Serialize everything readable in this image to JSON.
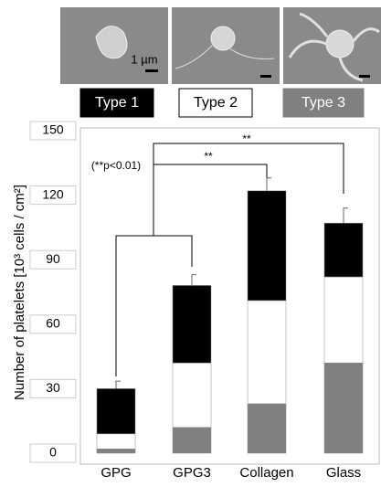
{
  "chart_data": {
    "type": "stacked_bar",
    "y_label": "Number of platelets [10³ cells / cm²]",
    "categories": [
      "GPG",
      "GPG3",
      "Collagen",
      "Glass"
    ],
    "series": [
      {
        "name": "Type 1",
        "color": "#000000",
        "values": [
          21,
          36,
          51,
          25
        ]
      },
      {
        "name": "Type 2",
        "color": "#ffffff",
        "values": [
          7,
          30,
          48,
          40
        ]
      },
      {
        "name": "Type 3",
        "color": "#808080",
        "values": [
          2,
          12,
          23,
          42
        ]
      }
    ],
    "errors": [
      3.5,
      5,
      6,
      7
    ],
    "ylim": [
      0,
      150
    ],
    "yticks": [
      0,
      30,
      60,
      90,
      120,
      150
    ],
    "annotations": [
      "(**p<0.01)",
      "**",
      "**"
    ],
    "scale_bar_label": "1 µm"
  }
}
